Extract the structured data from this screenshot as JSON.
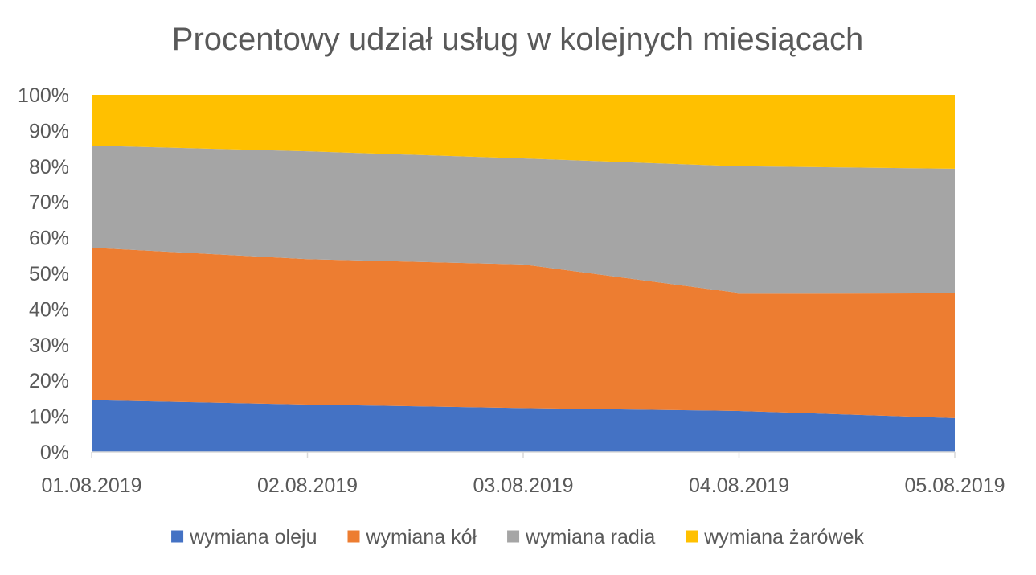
{
  "chart_data": {
    "type": "area",
    "stacked": "percent",
    "title": "Procentowy udział usług w kolejnych miesiącach",
    "xlabel": "",
    "ylabel": "",
    "categories": [
      "01.08.2019",
      "02.08.2019",
      "03.08.2019",
      "04.08.2019",
      "05.08.2019"
    ],
    "ylim": [
      0,
      100
    ],
    "yticks": [
      "0%",
      "10%",
      "20%",
      "30%",
      "40%",
      "50%",
      "60%",
      "70%",
      "80%",
      "90%",
      "100%"
    ],
    "grid": false,
    "legend_position": "bottom",
    "series": [
      {
        "name": "wymiana oleju",
        "color": "#4472C4",
        "values": [
          14.5,
          13.3,
          12.3,
          11.5,
          9.5
        ]
      },
      {
        "name": "wymiana kół",
        "color": "#ED7D31",
        "values": [
          42.7,
          40.7,
          40.2,
          33.0,
          35.1
        ]
      },
      {
        "name": "wymiana radia",
        "color": "#A5A5A5",
        "values": [
          28.6,
          30.2,
          29.7,
          35.5,
          34.7
        ]
      },
      {
        "name": "wymiana żarówek",
        "color": "#FFC000",
        "values": [
          14.2,
          15.8,
          17.8,
          20.0,
          20.7
        ]
      }
    ]
  }
}
